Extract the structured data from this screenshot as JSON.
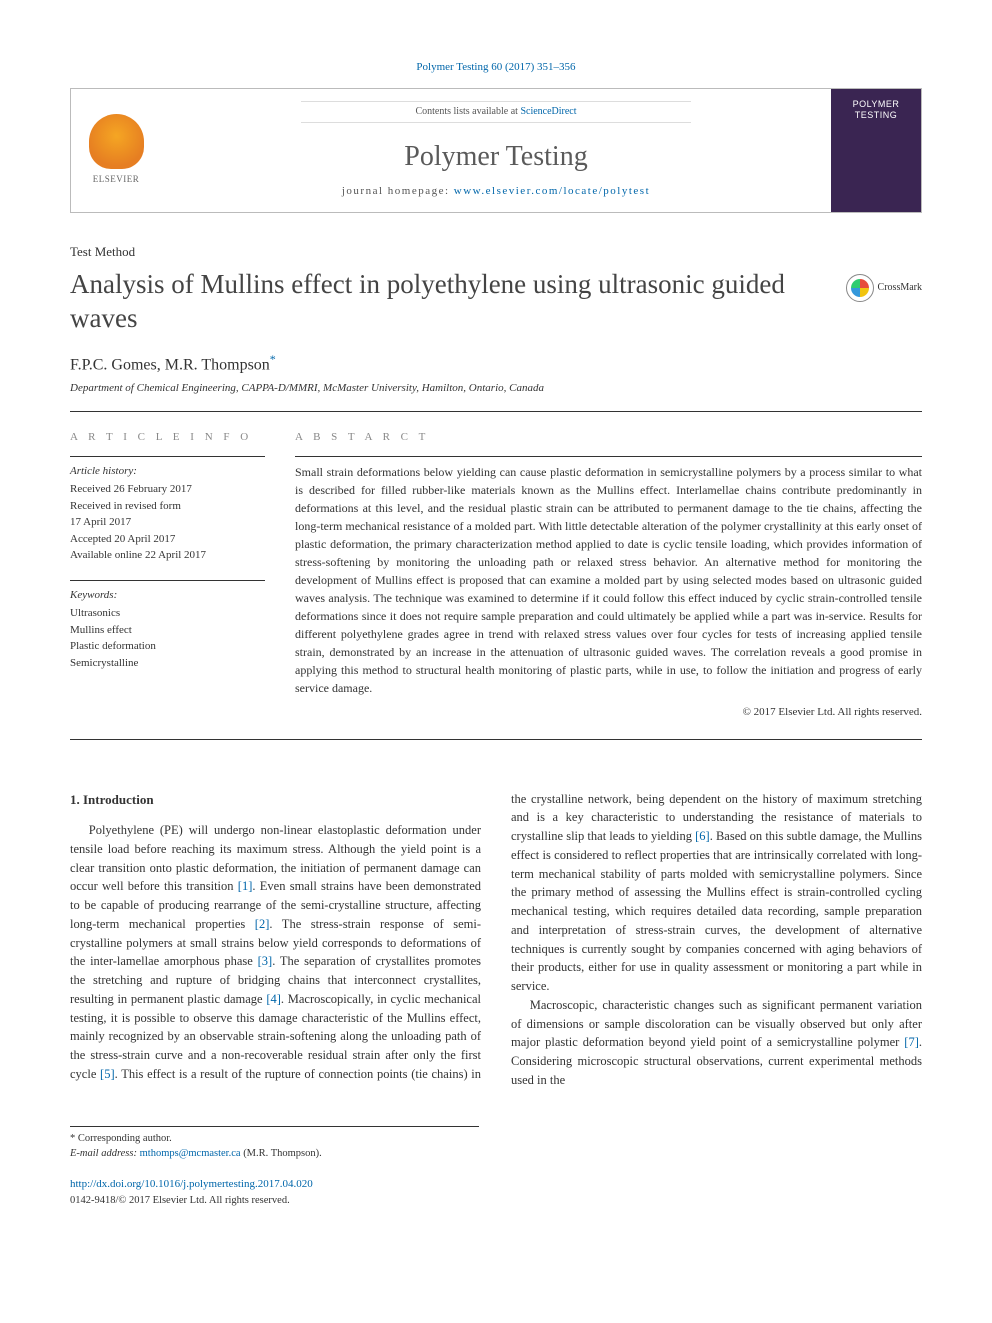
{
  "citation": "Polymer Testing 60 (2017) 351–356",
  "header": {
    "contents_prefix": "Contents lists available at ",
    "contents_link": "ScienceDirect",
    "journal_name": "Polymer Testing",
    "homepage_prefix": "journal homepage: ",
    "homepage_url": "www.elsevier.com/locate/polytest",
    "publisher": "ELSEVIER",
    "cover_text": "POLYMER TESTING"
  },
  "article": {
    "type": "Test Method",
    "title": "Analysis of Mullins effect in polyethylene using ultrasonic guided waves",
    "crossmark_label": "CrossMark",
    "authors": "F.P.C. Gomes, M.R. Thompson",
    "corr_mark": "*",
    "affiliation": "Department of Chemical Engineering, CAPPA-D/MMRI, McMaster University, Hamilton, Ontario, Canada"
  },
  "info": {
    "section_label": "A R T I C L E  I N F O",
    "history_label": "Article history:",
    "history": {
      "received": "Received 26 February 2017",
      "revised1": "Received in revised form",
      "revised2": "17 April 2017",
      "accepted": "Accepted 20 April 2017",
      "online": "Available online 22 April 2017"
    },
    "keywords_label": "Keywords:",
    "keywords": [
      "Ultrasonics",
      "Mullins effect",
      "Plastic deformation",
      "Semicrystalline"
    ]
  },
  "abstract": {
    "label": "A B S T A R C T",
    "text": "Small strain deformations below yielding can cause plastic deformation in semicrystalline polymers by a process similar to what is described for filled rubber-like materials known as the Mullins effect. Interlamellae chains contribute predominantly in deformations at this level, and the residual plastic strain can be attributed to permanent damage to the tie chains, affecting the long-term mechanical resistance of a molded part. With little detectable alteration of the polymer crystallinity at this early onset of plastic deformation, the primary characterization method applied to date is cyclic tensile loading, which provides information of stress-softening by monitoring the unloading path or relaxed stress behavior. An alternative method for monitoring the development of Mullins effect is proposed that can examine a molded part by using selected modes based on ultrasonic guided waves analysis. The technique was examined to determine if it could follow this effect induced by cyclic strain-controlled tensile deformations since it does not require sample preparation and could ultimately be applied while a part was in-service. Results for different polyethylene grades agree in trend with relaxed stress values over four cycles for tests of increasing applied tensile strain, demonstrated by an increase in the attenuation of ultrasonic guided waves. The correlation reveals a good promise in applying this method to structural health monitoring of plastic parts, while in use, to follow the initiation and progress of early service damage.",
    "copyright": "© 2017 Elsevier Ltd. All rights reserved."
  },
  "body": {
    "heading": "1. Introduction",
    "p1a": "Polyethylene (PE) will undergo non-linear elastoplastic deformation under tensile load before reaching its maximum stress. Although the yield point is a clear transition onto plastic deformation, the initiation of permanent damage can occur well before this transition ",
    "r1": "[1]",
    "p1b": ". Even small strains have been demonstrated to be capable of producing rearrange of the semi-crystalline structure, affecting long-term mechanical properties ",
    "r2": "[2]",
    "p1c": ". The stress-strain response of semi-crystalline polymers at small strains below yield corresponds to deformations of the inter-lamellae amorphous phase ",
    "r3": "[3]",
    "p1d": ". The separation of crystallites promotes the stretching and rupture of bridging chains that interconnect crystallites, resulting in permanent plastic damage ",
    "r4": "[4]",
    "p1e": ". Macroscopically, in cyclic mechanical testing, it is possible to observe this damage characteristic of the Mullins effect, mainly recognized by an observable strain-softening along the unloading path of the stress-strain curve",
    "p2a": "and a non-recoverable residual strain after only the first cycle ",
    "r5": "[5]",
    "p2b": ". This effect is a result of the rupture of connection points (tie chains) in the crystalline network, being dependent on the history of maximum stretching and is a key characteristic to understanding the resistance of materials to crystalline slip that leads to yielding ",
    "r6": "[6]",
    "p2c": ". Based on this subtle damage, the Mullins effect is considered to reflect properties that are intrinsically correlated with long-term mechanical stability of parts molded with semicrystalline polymers. Since the primary method of assessing the Mullins effect is strain-controlled cycling mechanical testing, which requires detailed data recording, sample preparation and interpretation of stress-strain curves, the development of alternative techniques is currently sought by companies concerned with aging behaviors of their products, either for use in quality assessment or monitoring a part while in service.",
    "p3a": "Macroscopic, characteristic changes such as significant permanent variation of dimensions or sample discoloration can be visually observed but only after major plastic deformation beyond yield point of a semicrystalline polymer ",
    "r7": "[7]",
    "p3b": ". Considering microscopic structural observations, current experimental methods used in the"
  },
  "footer": {
    "corr_label": "* Corresponding author.",
    "email_label": "E-mail address: ",
    "email": "mthomps@mcmaster.ca",
    "email_suffix": " (M.R. Thompson).",
    "doi": "http://dx.doi.org/10.1016/j.polymertesting.2017.04.020",
    "issn_line": "0142-9418/© 2017 Elsevier Ltd. All rights reserved."
  },
  "colors": {
    "link": "#0066aa",
    "text": "#333333",
    "muted": "#888888",
    "cover_bg": "#3a2552"
  }
}
